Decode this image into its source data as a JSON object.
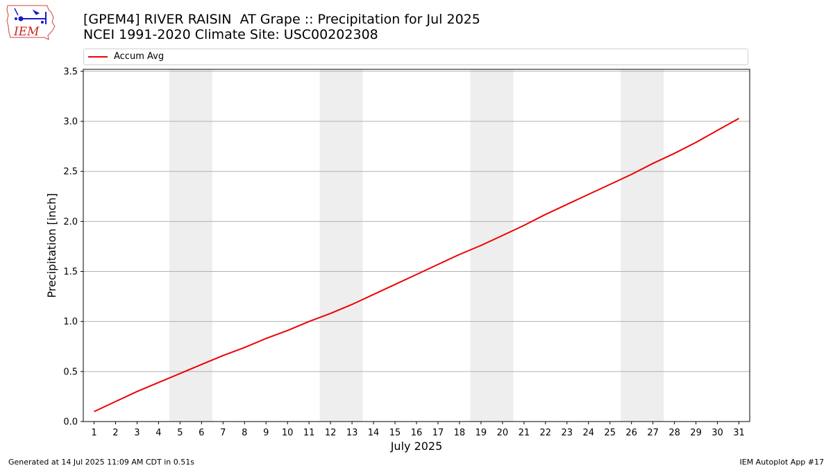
{
  "logo": {
    "text": "IEM"
  },
  "header": {
    "title_line1": "[GPEM4] RIVER RAISIN  AT Grape :: Precipitation for Jul 2025",
    "title_line2": "NCEI 1991-2020 Climate Site: USC00202308"
  },
  "footer": {
    "left": "Generated at 14 Jul 2025 11:09 AM CDT in 0.51s",
    "right": "IEM Autoplot App #17"
  },
  "colors": {
    "line": "#ee0000",
    "weekend_band": "#eeeeee",
    "grid": "#b0b0b0",
    "legend_border": "#d0d0d0"
  },
  "chart_data": {
    "type": "line",
    "xlabel": "July 2025",
    "ylabel": "Precipitation [inch]",
    "xlim": [
      0.5,
      31.5
    ],
    "ylim": [
      0,
      3.52
    ],
    "grid": "horizontal",
    "legend_placement": "top",
    "x": [
      1,
      2,
      3,
      4,
      5,
      6,
      7,
      8,
      9,
      10,
      11,
      12,
      13,
      14,
      15,
      16,
      17,
      18,
      19,
      20,
      21,
      22,
      23,
      24,
      25,
      26,
      27,
      28,
      29,
      30,
      31
    ],
    "x_tick_labels": [
      "1",
      "2",
      "3",
      "4",
      "5",
      "6",
      "7",
      "8",
      "9",
      "10",
      "11",
      "12",
      "13",
      "14",
      "15",
      "16",
      "17",
      "18",
      "19",
      "20",
      "21",
      "22",
      "23",
      "24",
      "25",
      "26",
      "27",
      "28",
      "29",
      "30",
      "31"
    ],
    "y_ticks": [
      0.0,
      0.5,
      1.0,
      1.5,
      2.0,
      2.5,
      3.0,
      3.5
    ],
    "y_tick_labels": [
      "0.0",
      "0.5",
      "1.0",
      "1.5",
      "2.0",
      "2.5",
      "3.0",
      "3.5"
    ],
    "weekend_days": [
      [
        5,
        6
      ],
      [
        12,
        13
      ],
      [
        19,
        20
      ],
      [
        26,
        27
      ]
    ],
    "series": [
      {
        "name": "Accum Avg",
        "color": "#ee0000",
        "values": [
          0.1,
          0.2,
          0.3,
          0.39,
          0.48,
          0.57,
          0.66,
          0.74,
          0.83,
          0.91,
          1.0,
          1.08,
          1.17,
          1.27,
          1.37,
          1.47,
          1.57,
          1.67,
          1.76,
          1.86,
          1.96,
          2.07,
          2.17,
          2.27,
          2.37,
          2.47,
          2.58,
          2.68,
          2.79,
          2.91,
          3.03
        ]
      }
    ]
  }
}
